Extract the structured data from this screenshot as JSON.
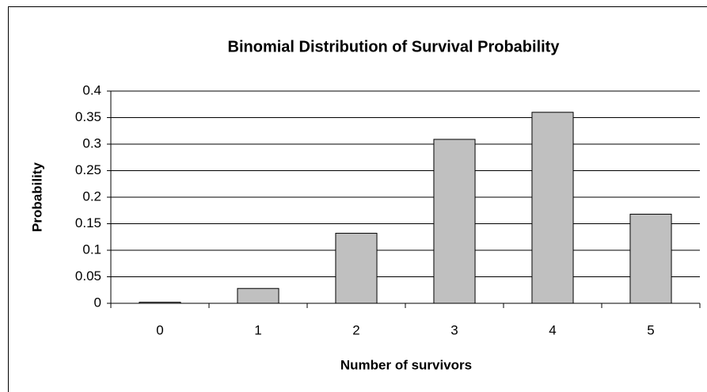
{
  "chart_data": {
    "type": "bar",
    "title": "Binomial Distribution of Survival Probability",
    "x_label": "Number of survivors",
    "y_label": "Probability",
    "categories": [
      "0",
      "1",
      "2",
      "3",
      "4",
      "5"
    ],
    "values": [
      0.002,
      0.028,
      0.132,
      0.309,
      0.36,
      0.168
    ],
    "color": "#c0c0c0",
    "ylim": [
      0,
      0.4
    ],
    "yticks": [
      0,
      0.05,
      0.1,
      0.15,
      0.2,
      0.25,
      0.3,
      0.35,
      0.4
    ],
    "grid": true
  }
}
